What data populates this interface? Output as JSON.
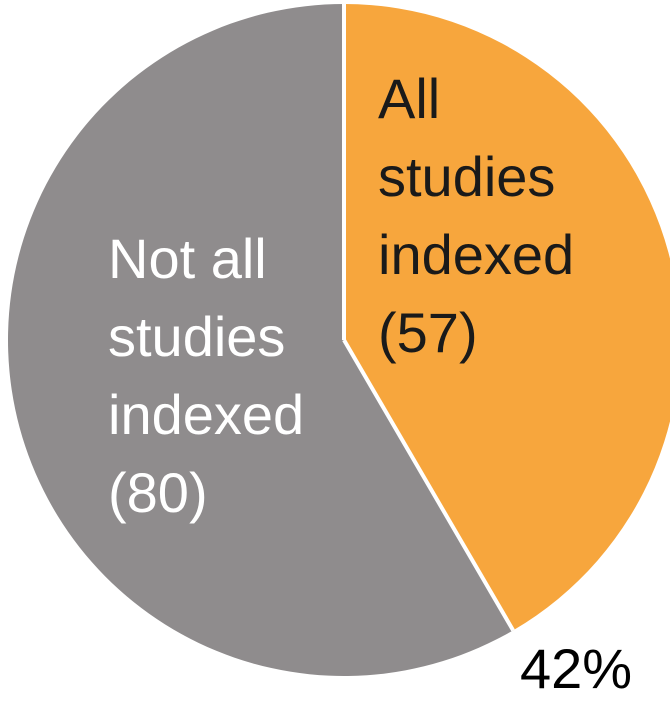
{
  "chart_data": {
    "type": "pie",
    "title": "",
    "slices": [
      {
        "label": "All studies indexed",
        "count": 57,
        "percent": 42,
        "color": "#F7A63D"
      },
      {
        "label": "Not all studies indexed",
        "count": 80,
        "percent": 58,
        "color": "#8F8C8D"
      }
    ],
    "slice_labels": [
      [
        "All",
        "studies",
        "indexed",
        "(57)"
      ],
      [
        "Not all",
        "studies",
        "indexed",
        "(80)"
      ]
    ],
    "percent_label": "42%"
  }
}
